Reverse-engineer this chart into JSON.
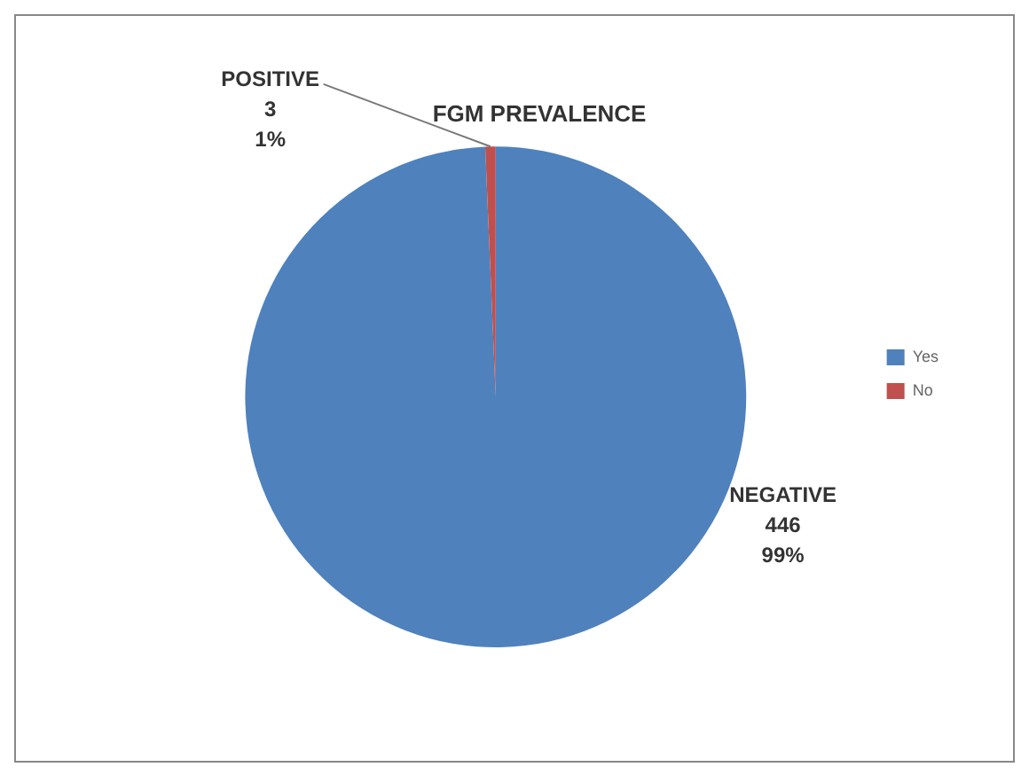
{
  "chart_data": {
    "type": "pie",
    "title": "FGM PREVALENCE",
    "categories": [
      "Yes",
      "No"
    ],
    "values": [
      446,
      3
    ],
    "colors": [
      "#4f81bd",
      "#c0504d"
    ],
    "value_labels": [
      "NEGATIVE\n446\n99%",
      "POSITIVE\n3\n1%"
    ],
    "legend": "right"
  }
}
